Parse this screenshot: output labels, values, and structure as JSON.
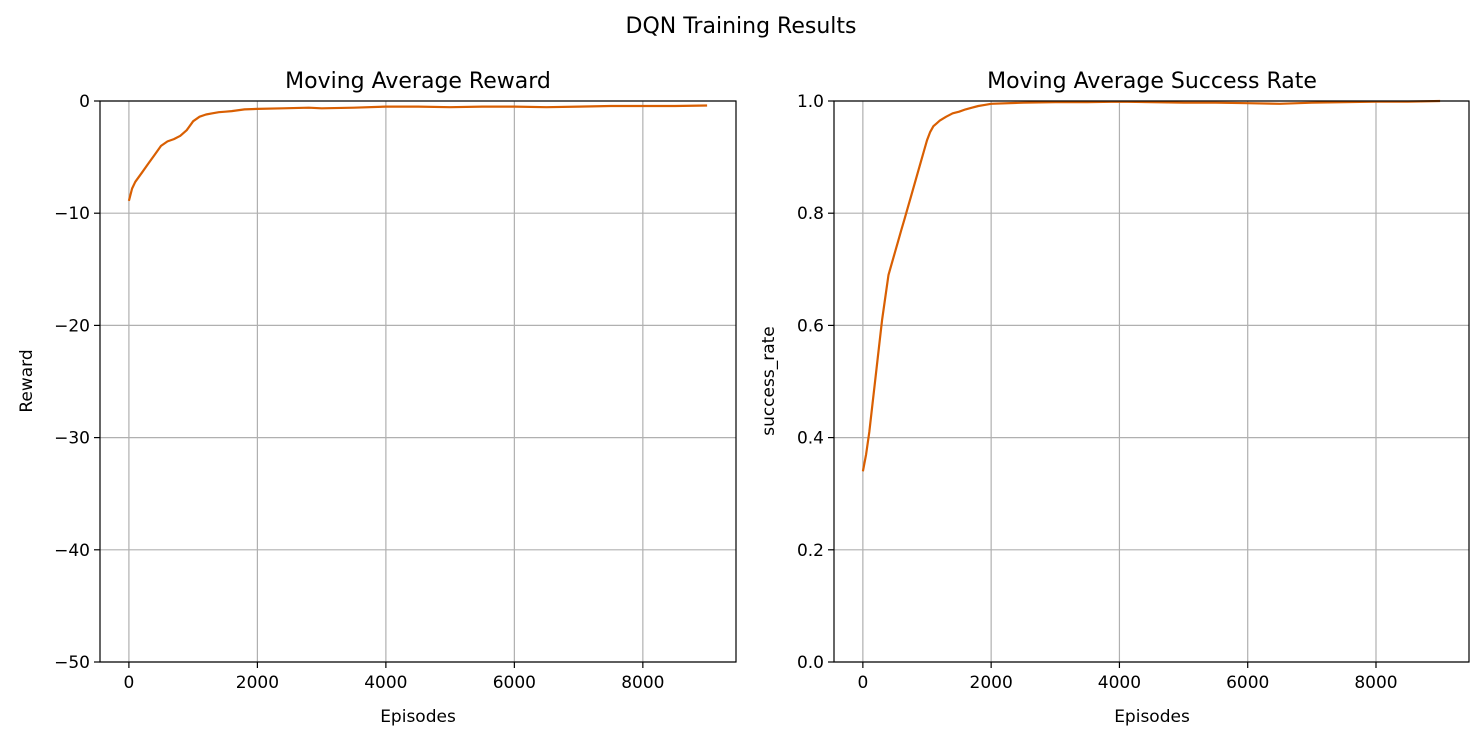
{
  "figure": {
    "title": "DQN Training Results"
  },
  "chart_data": [
    {
      "type": "line",
      "title": "Moving Average Reward",
      "xlabel": "Episodes",
      "ylabel": "Reward",
      "xlim": [
        -450,
        9450
      ],
      "ylim": [
        -50,
        0
      ],
      "xticks": [
        0,
        2000,
        4000,
        6000,
        8000
      ],
      "xtick_labels": [
        "0",
        "2000",
        "4000",
        "6000",
        "8000"
      ],
      "yticks": [
        -50,
        -40,
        -30,
        -20,
        -10,
        0
      ],
      "ytick_labels": [
        "−50",
        "−40",
        "−30",
        "−20",
        "−10",
        "0"
      ],
      "grid": true,
      "series_color": "#d95f02",
      "series": [
        {
          "x": [
            0,
            50,
            100,
            200,
            300,
            400,
            500,
            600,
            700,
            800,
            900,
            1000,
            1100,
            1200,
            1300,
            1400,
            1500,
            1600,
            1800,
            2000,
            2400,
            2800,
            3000,
            3500,
            4000,
            4500,
            5000,
            5500,
            6000,
            6500,
            7000,
            7500,
            8000,
            8500,
            9000
          ],
          "y": [
            -8.9,
            -7.8,
            -7.2,
            -6.4,
            -5.6,
            -4.8,
            -4.0,
            -3.6,
            -3.4,
            -3.1,
            -2.6,
            -1.8,
            -1.4,
            -1.2,
            -1.1,
            -1.0,
            -0.95,
            -0.9,
            -0.75,
            -0.7,
            -0.65,
            -0.6,
            -0.65,
            -0.6,
            -0.5,
            -0.5,
            -0.55,
            -0.5,
            -0.5,
            -0.55,
            -0.5,
            -0.45,
            -0.45,
            -0.45,
            -0.4
          ]
        }
      ]
    },
    {
      "type": "line",
      "title": "Moving Average Success Rate",
      "xlabel": "Episodes",
      "ylabel": "success_rate",
      "xlim": [
        -450,
        9450
      ],
      "ylim": [
        0,
        1
      ],
      "xticks": [
        0,
        2000,
        4000,
        6000,
        8000
      ],
      "xtick_labels": [
        "0",
        "2000",
        "4000",
        "6000",
        "8000"
      ],
      "yticks": [
        0,
        0.2,
        0.4,
        0.6,
        0.8,
        1.0
      ],
      "ytick_labels": [
        "0.0",
        "0.2",
        "0.4",
        "0.6",
        "0.8",
        "1.0"
      ],
      "grid": true,
      "series_color": "#d95f02",
      "series": [
        {
          "x": [
            0,
            50,
            100,
            150,
            200,
            250,
            300,
            350,
            400,
            450,
            500,
            550,
            600,
            650,
            700,
            750,
            800,
            850,
            900,
            950,
            1000,
            1050,
            1100,
            1150,
            1200,
            1300,
            1400,
            1500,
            1600,
            1700,
            1800,
            1900,
            2000,
            2500,
            3000,
            3500,
            4000,
            4500,
            5000,
            5500,
            6000,
            6500,
            7000,
            7500,
            8000,
            8500,
            9000
          ],
          "y": [
            0.34,
            0.37,
            0.41,
            0.46,
            0.51,
            0.56,
            0.61,
            0.65,
            0.69,
            0.71,
            0.73,
            0.75,
            0.77,
            0.79,
            0.81,
            0.83,
            0.85,
            0.87,
            0.89,
            0.91,
            0.93,
            0.945,
            0.955,
            0.96,
            0.965,
            0.972,
            0.978,
            0.981,
            0.985,
            0.988,
            0.991,
            0.993,
            0.995,
            0.997,
            0.998,
            0.998,
            0.999,
            0.998,
            0.997,
            0.997,
            0.996,
            0.995,
            0.997,
            0.998,
            0.999,
            0.999,
            1.0
          ]
        }
      ]
    }
  ]
}
